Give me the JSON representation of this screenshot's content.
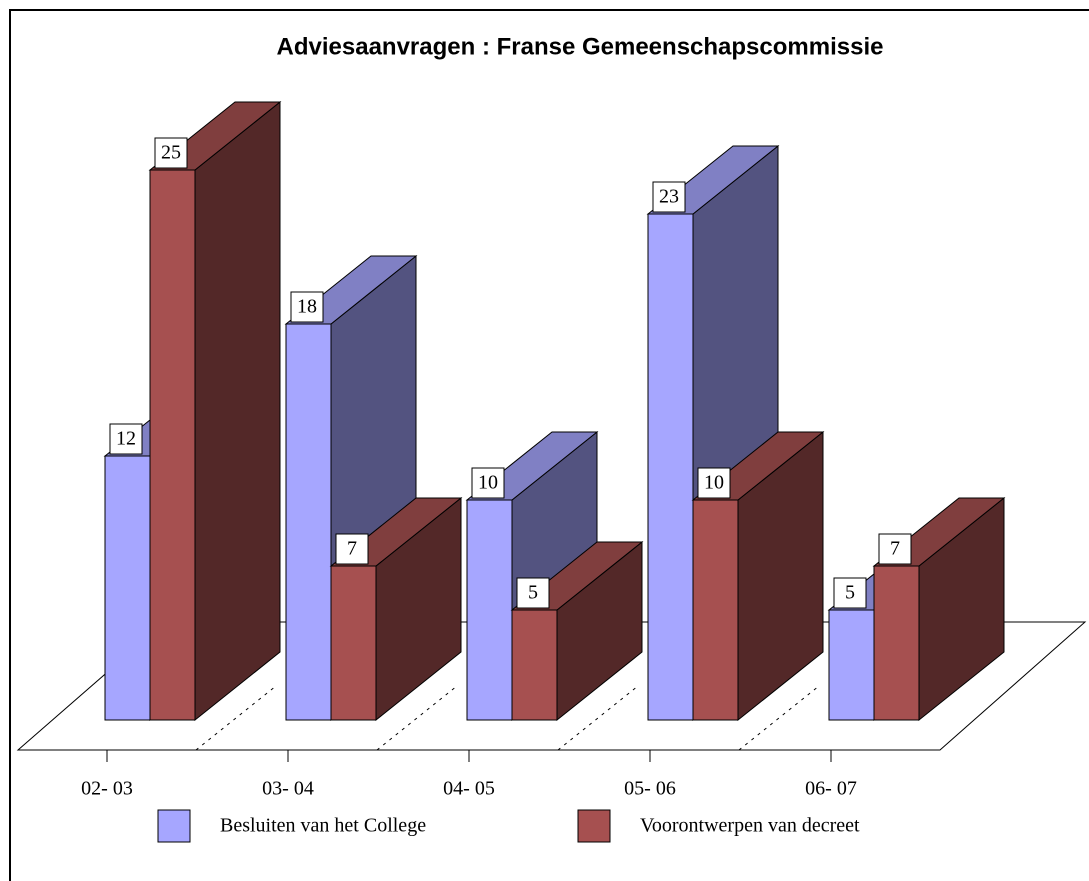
{
  "chart_data": {
    "type": "bar3d",
    "title": "Adviesaanvragen : Franse Gemeenschapscommissie",
    "categories": [
      "02- 03",
      "03- 04",
      "04- 05",
      "05- 06",
      "06- 07"
    ],
    "series": [
      {
        "name": "Besluiten van het College",
        "color": "#a6a6ff",
        "values": [
          12,
          18,
          10,
          23,
          5
        ]
      },
      {
        "name": "Voorontwerpen van decreet",
        "color": "#a65050",
        "values": [
          25,
          7,
          5,
          10,
          7
        ]
      }
    ],
    "legend": "bottom"
  }
}
